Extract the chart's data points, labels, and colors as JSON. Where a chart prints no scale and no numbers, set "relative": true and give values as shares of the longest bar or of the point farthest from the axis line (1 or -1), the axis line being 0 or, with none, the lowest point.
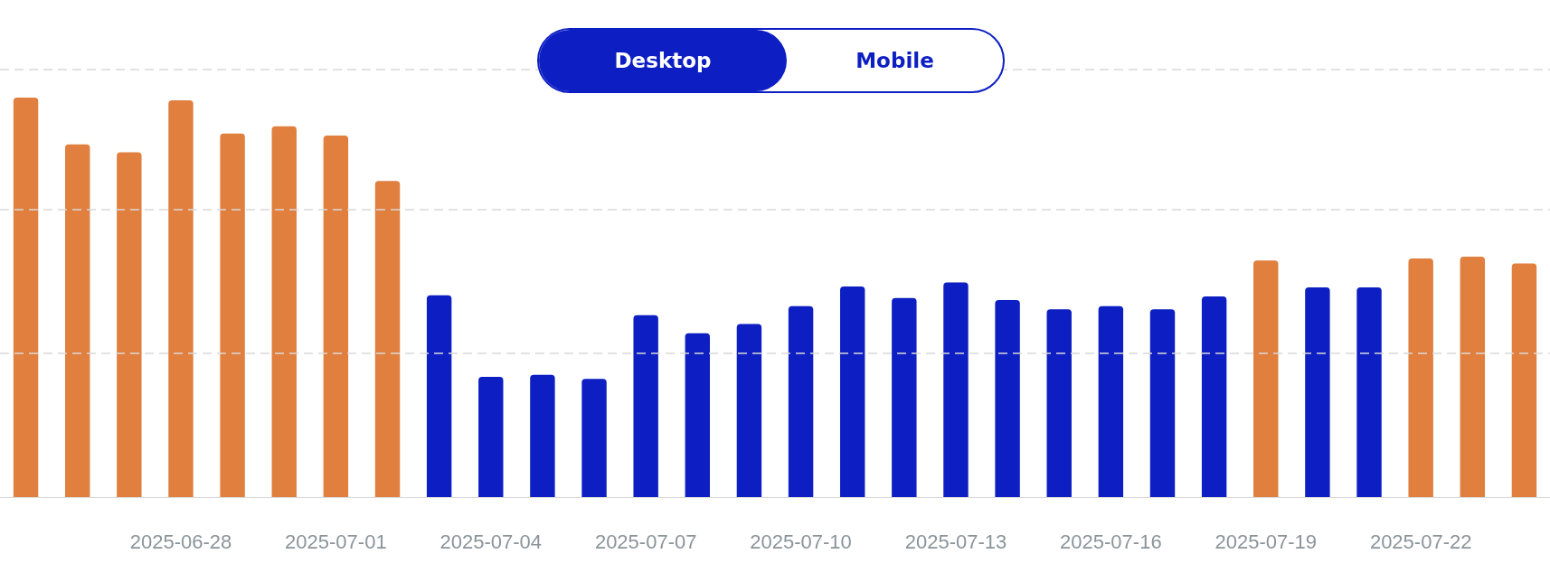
{
  "chart_data": {
    "type": "bar",
    "relative": true,
    "ref_lines": [
      {
        "axis": "y",
        "value": 0.358,
        "color": "#d9d9d9",
        "line_style": "dashed"
      },
      {
        "axis": "y",
        "value": 0.72,
        "color": "#d9d9d9",
        "line_style": "dashed"
      },
      {
        "axis": "y",
        "value": 1.07,
        "color": "#d9d9d9",
        "line_style": "dashed"
      }
    ],
    "annotations": [
      "Desktop",
      "Mobile"
    ],
    "categories": [
      null,
      null,
      null,
      "2025-06-28",
      null,
      null,
      "2025-07-01",
      null,
      null,
      "2025-07-04",
      null,
      null,
      "2025-07-07",
      null,
      null,
      "2025-07-10",
      null,
      null,
      "2025-07-13",
      null,
      null,
      "2025-07-16",
      null,
      null,
      "2025-07-19",
      null,
      null,
      "2025-07-22",
      null,
      null
    ],
    "values": [
      1,
      0.883,
      0.863,
      0.993,
      0.91,
      0.928,
      0.905,
      0.791,
      0.505,
      0.301,
      0.306,
      0.296,
      0.455,
      0.41,
      0.433,
      0.478,
      0.527,
      0.498,
      0.537,
      0.493,
      0.47,
      0.478,
      0.47,
      0.502,
      0.592,
      0.525,
      0.525,
      0.597,
      0.602,
      0.585
    ],
    "colors": [
      "#e07f3e",
      "#e07f3e",
      "#e07f3e",
      "#e07f3e",
      "#e07f3e",
      "#e07f3e",
      "#e07f3e",
      "#e07f3e",
      "#0d1fc2",
      "#0d1fc2",
      "#0d1fc2",
      "#0d1fc2",
      "#0d1fc2",
      "#0d1fc2",
      "#0d1fc2",
      "#0d1fc2",
      "#0d1fc2",
      "#0d1fc2",
      "#0d1fc2",
      "#0d1fc2",
      "#0d1fc2",
      "#0d1fc2",
      "#0d1fc2",
      "#0d1fc2",
      "#e07f3e",
      "#0d1fc2",
      "#0d1fc2",
      "#e07f3e",
      "#e07f3e",
      "#e07f3e"
    ]
  }
}
